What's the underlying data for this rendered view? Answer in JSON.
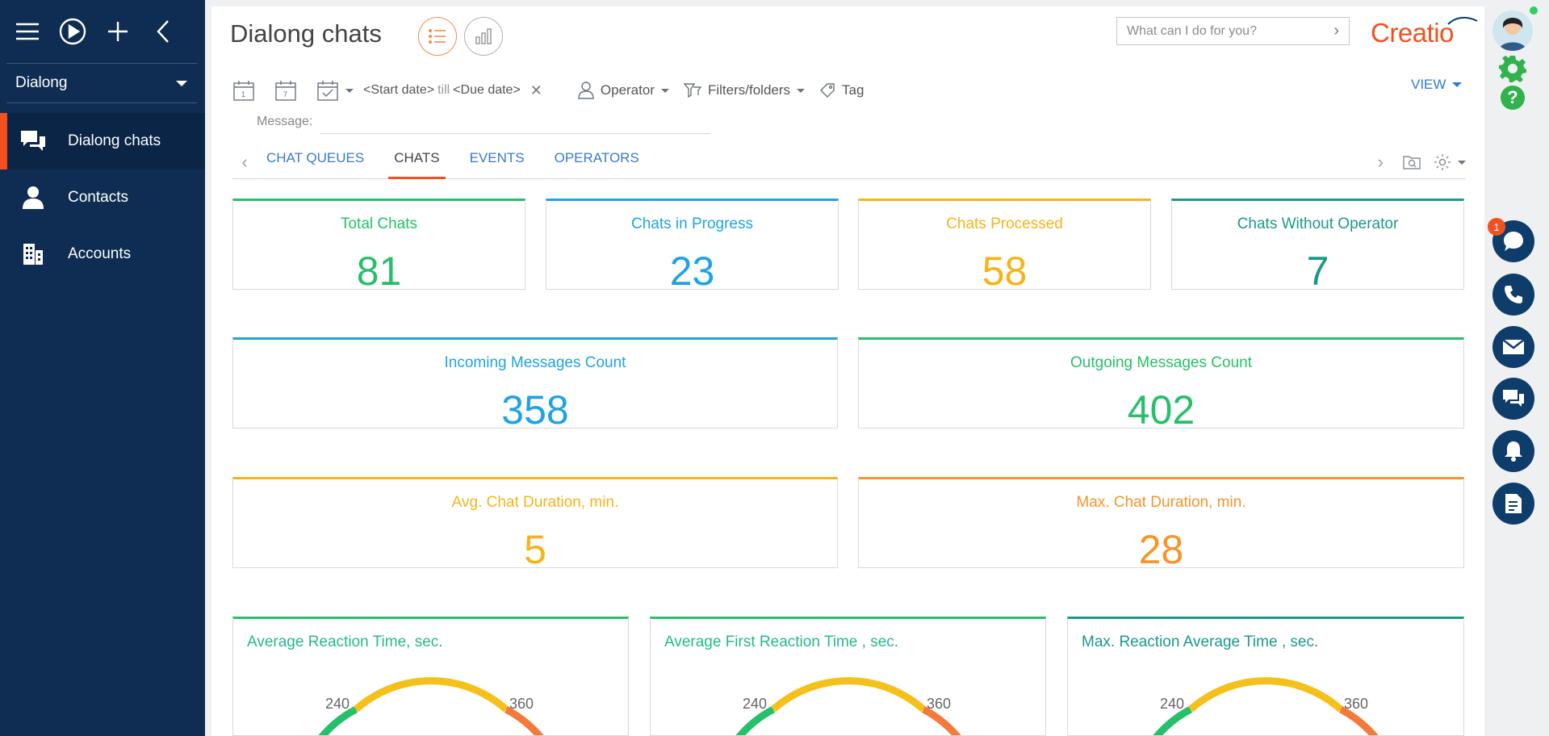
{
  "sidebar": {
    "workspace": "Dialong",
    "items": [
      {
        "label": "Dialong chats",
        "icon": "chat-bubbles-icon",
        "active": true
      },
      {
        "label": "Contacts",
        "icon": "person-icon",
        "active": false
      },
      {
        "label": "Accounts",
        "icon": "building-icon",
        "active": false
      }
    ]
  },
  "header": {
    "title": "Dialong chats",
    "search_placeholder": "What can I do for you?",
    "logo_text": "Creatio",
    "view_label": "VIEW"
  },
  "filters": {
    "start_date": "<Start date>",
    "till": "till",
    "due_date": "<Due date>",
    "operator_label": "Operator",
    "filters_label": "Filters/folders",
    "tag_label": "Tag",
    "message_label": "Message:"
  },
  "tabs": [
    {
      "label": "CHAT QUEUES",
      "active": false
    },
    {
      "label": "CHATS",
      "active": true
    },
    {
      "label": "EVENTS",
      "active": false
    },
    {
      "label": "OPERATORS",
      "active": false
    }
  ],
  "metrics": {
    "total_chats": {
      "title": "Total Chats",
      "value": "81",
      "color": "#26c06a"
    },
    "chats_in_progress": {
      "title": "Chats in Progress",
      "value": "23",
      "color": "#1fa3e6"
    },
    "chats_processed": {
      "title": "Chats Processed",
      "value": "58",
      "color": "#f6b41a"
    },
    "chats_without_operator": {
      "title": "Chats Without Operator",
      "value": "7",
      "color": "#1a9a86"
    },
    "incoming_messages": {
      "title": "Incoming Messages Count",
      "value": "358",
      "color": "#1fa3e6"
    },
    "outgoing_messages": {
      "title": "Outgoing Messages Count",
      "value": "402",
      "color": "#26c06a"
    },
    "avg_duration": {
      "title": "Avg. Chat Duration, min.",
      "value": "5",
      "color": "#f6b41a"
    },
    "max_duration": {
      "title": "Max. Chat Duration, min.",
      "value": "28",
      "color": "#f7942a"
    }
  },
  "gauges": [
    {
      "title": "Average Reaction Time, sec.",
      "low_label": "240",
      "high_label": "360",
      "accent": "#26c06a"
    },
    {
      "title": "Average First Reaction Time , sec.",
      "low_label": "240",
      "high_label": "360",
      "accent": "#26c06a"
    },
    {
      "title": "Max. Reaction Average Time , sec.",
      "low_label": "240",
      "high_label": "360",
      "accent": "#1a9a86"
    }
  ],
  "rail": {
    "badge_count": "1"
  },
  "colors": {
    "sidebar_bg": "#0f2d52",
    "accent_orange": "#f4501f",
    "link_blue": "#2b7bd6"
  }
}
